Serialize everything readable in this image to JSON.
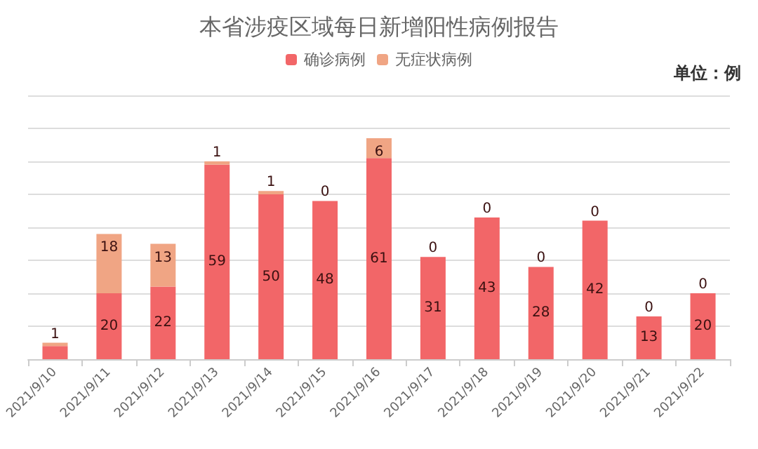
{
  "chart_data": {
    "type": "bar",
    "title": "本省涉疫区域每日新增阳性病例报告",
    "annotations": [
      "单位：例"
    ],
    "categories": [
      "2021/9/10",
      "2021/9/11",
      "2021/9/12",
      "2021/9/13",
      "2021/9/14",
      "2021/9/15",
      "2021/9/16",
      "2021/9/17",
      "2021/9/18",
      "2021/9/19",
      "2021/9/20",
      "2021/9/21",
      "2021/9/22"
    ],
    "series": [
      {
        "name": "确诊病例",
        "color": "#f26668",
        "values": [
          4,
          20,
          22,
          59,
          50,
          48,
          61,
          31,
          43,
          28,
          42,
          13,
          20
        ],
        "value_labels": [
          null,
          "20",
          "22",
          "59",
          "50",
          "48",
          "61",
          "31",
          "43",
          "28",
          "42",
          "13",
          "20"
        ]
      },
      {
        "name": "无症状病例",
        "color": "#f0a584",
        "values": [
          1,
          18,
          13,
          1,
          1,
          0,
          6,
          0,
          0,
          0,
          0,
          0,
          0
        ],
        "value_labels": [
          "1",
          "18",
          "13",
          "1",
          "1",
          "0",
          "6",
          "0",
          "0",
          "0",
          "0",
          "0",
          "0"
        ]
      }
    ],
    "stacked": true,
    "ylim": [
      0,
      80
    ],
    "yticks": [
      {
        "value": 0,
        "label": null
      },
      {
        "value": 10,
        "label": null
      },
      {
        "value": 20,
        "label": null
      },
      {
        "value": 30,
        "label": null
      },
      {
        "value": 40,
        "label": null
      },
      {
        "value": 50,
        "label": null
      },
      {
        "value": 60,
        "label": null
      },
      {
        "value": 70,
        "label": null
      },
      {
        "value": 80,
        "label": null
      }
    ],
    "grid": "y",
    "legend": "top",
    "tick_labels": "x"
  }
}
